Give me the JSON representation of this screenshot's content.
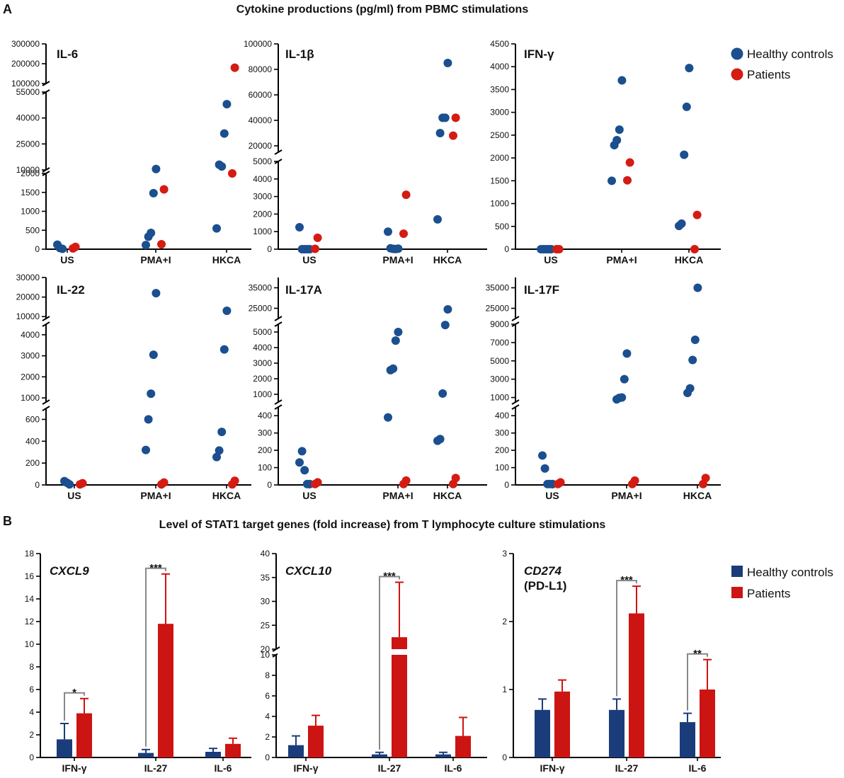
{
  "panel_a": {
    "letter": "A",
    "title": "Cytokine productions (pg/ml) from PBMC stimulations",
    "legend": [
      {
        "label": "Healthy controls",
        "color": "#1b4f8f"
      },
      {
        "label": "Patients",
        "color": "#d41c13"
      }
    ]
  },
  "panel_b": {
    "letter": "B",
    "title": "Level of STAT1 target genes (fold increase) from T lymphocyte culture stimulations",
    "legend": [
      {
        "label": "Healthy controls",
        "color": "#1b3c7a"
      },
      {
        "label": "Patients",
        "color": "#cc1412"
      }
    ]
  },
  "chart_data": [
    {
      "type": "scatter",
      "title": "IL-6",
      "categories": [
        "US",
        "PMA+I",
        "HKCA"
      ],
      "segments": [
        [
          0,
          2000
        ],
        [
          10000,
          55000
        ],
        [
          100000,
          300000
        ]
      ],
      "ticks": [
        [
          0,
          500,
          1000,
          1500,
          2000
        ],
        [
          10000,
          25000,
          40000,
          55000
        ],
        [
          100000,
          200000,
          300000
        ]
      ],
      "series": [
        {
          "name": "Healthy controls",
          "points": [
            [
              0,
              120
            ],
            [
              0,
              30
            ],
            [
              0,
              10
            ],
            [
              1,
              110
            ],
            [
              1,
              330
            ],
            [
              1,
              430
            ],
            [
              1,
              1480
            ],
            [
              1,
              10500
            ],
            [
              2,
              550
            ],
            [
              2,
              13000
            ],
            [
              2,
              12000
            ],
            [
              2,
              31000
            ],
            [
              2,
              48000
            ]
          ]
        },
        {
          "name": "Patients",
          "points": [
            [
              0,
              20
            ],
            [
              0,
              60
            ],
            [
              1,
              130
            ],
            [
              1,
              1580
            ],
            [
              2,
              9000
            ],
            [
              2,
              180000
            ]
          ]
        }
      ]
    },
    {
      "type": "scatter",
      "title": "IL-1β",
      "categories": [
        "US",
        "PMA+I",
        "HKCA"
      ],
      "segments": [
        [
          0,
          5000
        ],
        [
          15000,
          100000
        ]
      ],
      "ticks": [
        [
          0,
          1000,
          2000,
          3000,
          4000,
          5000
        ],
        [
          20000,
          40000,
          60000,
          80000,
          100000
        ]
      ],
      "series": [
        {
          "name": "Healthy controls",
          "points": [
            [
              0,
              1250
            ],
            [
              0,
              0
            ],
            [
              0,
              0
            ],
            [
              0,
              0
            ],
            [
              0,
              0
            ],
            [
              1,
              1000
            ],
            [
              1,
              50
            ],
            [
              1,
              20
            ],
            [
              1,
              10
            ],
            [
              1,
              30
            ],
            [
              2,
              1700
            ],
            [
              2,
              30000
            ],
            [
              2,
              42000
            ],
            [
              2,
              42000
            ],
            [
              2,
              85000
            ]
          ]
        },
        {
          "name": "Patients",
          "points": [
            [
              0,
              20
            ],
            [
              0,
              650
            ],
            [
              1,
              880
            ],
            [
              1,
              3100
            ],
            [
              2,
              28000
            ],
            [
              2,
              42000
            ]
          ]
        }
      ]
    },
    {
      "type": "scatter",
      "title": "IFN-γ",
      "categories": [
        "US",
        "PMA+I",
        "HKCA"
      ],
      "segments": [
        [
          0,
          4500
        ]
      ],
      "ticks": [
        [
          0,
          500,
          1000,
          1500,
          2000,
          2500,
          3000,
          3500,
          4000,
          4500
        ]
      ],
      "series": [
        {
          "name": "Healthy controls",
          "points": [
            [
              0,
              0
            ],
            [
              0,
              0
            ],
            [
              0,
              0
            ],
            [
              0,
              0
            ],
            [
              0,
              0
            ],
            [
              1,
              1500
            ],
            [
              1,
              2280
            ],
            [
              1,
              2390
            ],
            [
              1,
              2620
            ],
            [
              1,
              3700
            ],
            [
              2,
              510
            ],
            [
              2,
              560
            ],
            [
              2,
              2070
            ],
            [
              2,
              3120
            ],
            [
              2,
              3970
            ]
          ]
        },
        {
          "name": "Patients",
          "points": [
            [
              0,
              0
            ],
            [
              0,
              0
            ],
            [
              1,
              1510
            ],
            [
              1,
              1900
            ],
            [
              2,
              0
            ],
            [
              2,
              750
            ]
          ]
        }
      ]
    },
    {
      "type": "scatter",
      "title": "IL-22",
      "categories": [
        "US",
        "PMA+I",
        "HKCA"
      ],
      "segments": [
        [
          0,
          700
        ],
        [
          800,
          4500
        ],
        [
          9000,
          30000
        ]
      ],
      "ticks": [
        [
          0,
          200,
          400,
          600
        ],
        [
          1000,
          2000,
          3000,
          4000
        ],
        [
          10000,
          20000,
          30000
        ]
      ],
      "series": [
        {
          "name": "Healthy controls",
          "points": [
            [
              0,
              35
            ],
            [
              0,
              20
            ],
            [
              0,
              5
            ],
            [
              1,
              320
            ],
            [
              1,
              600
            ],
            [
              1,
              1200
            ],
            [
              1,
              3050
            ],
            [
              1,
              22000
            ],
            [
              2,
              255
            ],
            [
              2,
              315
            ],
            [
              2,
              485
            ],
            [
              2,
              3300
            ],
            [
              2,
              13000
            ]
          ]
        },
        {
          "name": "Patients",
          "points": [
            [
              0,
              5
            ],
            [
              0,
              15
            ],
            [
              1,
              5
            ],
            [
              1,
              22
            ],
            [
              2,
              5
            ],
            [
              2,
              38
            ]
          ]
        }
      ]
    },
    {
      "type": "scatter",
      "title": "IL-17A",
      "categories": [
        "US",
        "PMA+I",
        "HKCA"
      ],
      "segments": [
        [
          0,
          450
        ],
        [
          500,
          5500
        ],
        [
          20000,
          40000
        ]
      ],
      "ticks": [
        [
          0,
          100,
          200,
          300,
          400
        ],
        [
          1000,
          2000,
          3000,
          4000,
          5000
        ],
        [
          25000,
          35000
        ]
      ],
      "series": [
        {
          "name": "Healthy controls",
          "points": [
            [
              0,
              130
            ],
            [
              0,
              195
            ],
            [
              0,
              85
            ],
            [
              0,
              5
            ],
            [
              0,
              5
            ],
            [
              1,
              390
            ],
            [
              1,
              2550
            ],
            [
              1,
              2650
            ],
            [
              1,
              4450
            ],
            [
              1,
              5000
            ],
            [
              2,
              255
            ],
            [
              2,
              265
            ],
            [
              2,
              1050
            ],
            [
              2,
              5450
            ],
            [
              2,
              24500
            ]
          ]
        },
        {
          "name": "Patients",
          "points": [
            [
              0,
              5
            ],
            [
              0,
              15
            ],
            [
              1,
              5
            ],
            [
              1,
              25
            ],
            [
              2,
              5
            ],
            [
              2,
              40
            ]
          ]
        }
      ]
    },
    {
      "type": "scatter",
      "title": "IL-17F",
      "categories": [
        "US",
        "PMA+I",
        "HKCA"
      ],
      "segments": [
        [
          0,
          450
        ],
        [
          500,
          9000
        ],
        [
          20000,
          40000
        ]
      ],
      "ticks": [
        [
          0,
          100,
          200,
          300,
          400
        ],
        [
          1000,
          3000,
          5000,
          7000,
          9000
        ],
        [
          25000,
          35000
        ]
      ],
      "series": [
        {
          "name": "Healthy controls",
          "points": [
            [
              0,
              170
            ],
            [
              0,
              95
            ],
            [
              0,
              5
            ],
            [
              0,
              5
            ],
            [
              0,
              5
            ],
            [
              1,
              800
            ],
            [
              1,
              950
            ],
            [
              1,
              1000
            ],
            [
              1,
              3000
            ],
            [
              1,
              5800
            ],
            [
              2,
              1500
            ],
            [
              2,
              2000
            ],
            [
              2,
              5100
            ],
            [
              2,
              7300
            ],
            [
              2,
              35000
            ]
          ]
        },
        {
          "name": "Patients",
          "points": [
            [
              0,
              5
            ],
            [
              0,
              15
            ],
            [
              1,
              5
            ],
            [
              1,
              25
            ],
            [
              2,
              5
            ],
            [
              2,
              40
            ]
          ]
        }
      ]
    },
    {
      "type": "bar",
      "title": "CXCL9",
      "subtitle": "",
      "categories": [
        "IFN-γ",
        "IL-27",
        "IL-6"
      ],
      "segments": [
        [
          0,
          18
        ]
      ],
      "ticks": [
        [
          0,
          2,
          4,
          6,
          8,
          10,
          12,
          14,
          16,
          18
        ]
      ],
      "series": [
        {
          "name": "Healthy controls",
          "values": [
            1.6,
            0.4,
            0.5
          ],
          "errors": [
            1.4,
            0.3,
            0.3
          ]
        },
        {
          "name": "Patients",
          "values": [
            3.9,
            11.8,
            1.2
          ],
          "errors": [
            1.3,
            4.4,
            0.5
          ]
        }
      ],
      "significance": [
        {
          "category": 0,
          "label": "*"
        },
        {
          "category": 1,
          "label": "***"
        }
      ]
    },
    {
      "type": "bar",
      "title": "CXCL10",
      "subtitle": "",
      "categories": [
        "IFN-γ",
        "IL-27",
        "IL-6"
      ],
      "segments": [
        [
          0,
          10
        ],
        [
          20,
          40
        ]
      ],
      "ticks": [
        [
          0,
          2,
          4,
          6,
          8,
          10
        ],
        [
          20,
          25,
          30,
          35,
          40
        ]
      ],
      "series": [
        {
          "name": "Healthy controls",
          "values": [
            1.2,
            0.3,
            0.3
          ],
          "errors": [
            0.9,
            0.2,
            0.2
          ]
        },
        {
          "name": "Patients",
          "values": [
            3.1,
            22.5,
            2.1
          ],
          "errors": [
            1.0,
            11.5,
            1.8
          ]
        }
      ],
      "significance": [
        {
          "category": 1,
          "label": "***"
        }
      ]
    },
    {
      "type": "bar",
      "title": "CD274",
      "subtitle": "(PD-L1)",
      "categories": [
        "IFN-γ",
        "IL-27",
        "IL-6"
      ],
      "segments": [
        [
          0,
          3
        ]
      ],
      "ticks": [
        [
          0,
          1,
          2,
          3
        ]
      ],
      "series": [
        {
          "name": "Healthy controls",
          "values": [
            0.7,
            0.7,
            0.52
          ],
          "errors": [
            0.16,
            0.16,
            0.13
          ]
        },
        {
          "name": "Patients",
          "values": [
            0.97,
            2.12,
            1.0
          ],
          "errors": [
            0.17,
            0.4,
            0.44
          ]
        }
      ],
      "significance": [
        {
          "category": 1,
          "label": "***"
        },
        {
          "category": 2,
          "label": "**"
        }
      ]
    }
  ]
}
